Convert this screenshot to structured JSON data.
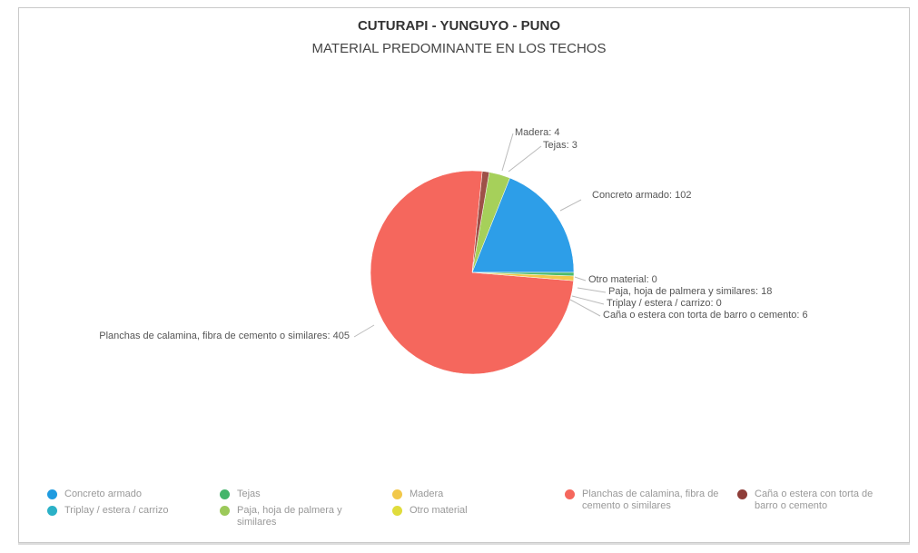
{
  "chart_data": {
    "type": "pie",
    "title": "CUTURAPI - YUNGUYO - PUNO",
    "subtitle": "MATERIAL PREDOMINANTE EN LOS TECHOS",
    "legend_position": "bottom",
    "slices": [
      {
        "label": "Concreto armado",
        "value": 102,
        "color": "#2d9ee8",
        "data_label": "Concreto armado: 102"
      },
      {
        "label": "Otro material",
        "value": 0,
        "color": "#e6e04a",
        "data_label": "Otro material: 0"
      },
      {
        "label": "Paja, hoja de palmera y similares",
        "value": 18,
        "color": "#a6d05a",
        "data_label": "Paja, hoja de palmera y similares: 18"
      },
      {
        "label": "Triplay / estera / carrizo",
        "value": 0,
        "color": "#36b6c9",
        "data_label": "Triplay / estera / carrizo: 0"
      },
      {
        "label": "Caña o estera con torta de barro o cemento",
        "value": 6,
        "color": "#9e5048",
        "data_label": "Caña o estera con torta de barro o cemento: 6"
      },
      {
        "label": "Planchas de calamina, fibra de cemento o similares",
        "value": 405,
        "color": "#f5675d",
        "data_label": "Planchas de calamina, fibra de cemento o similares: 405"
      },
      {
        "label": "Madera",
        "value": 4,
        "color": "#f2c84a",
        "data_label": "Madera: 4"
      },
      {
        "label": "Tejas",
        "value": 3,
        "color": "#4dbb6a",
        "data_label": "Tejas: 3"
      }
    ],
    "legend": [
      {
        "label": "Concreto armado",
        "color": "#1f9be0"
      },
      {
        "label": "Triplay / estera / carrizo",
        "color": "#2bb1c7"
      },
      {
        "label": "Tejas",
        "color": "#43b56a"
      },
      {
        "label": "Paja, hoja de palmera y similares",
        "color": "#9cc95a"
      },
      {
        "label": "Madera",
        "color": "#f2c84a"
      },
      {
        "label": "Otro material",
        "color": "#e0dc3c"
      },
      {
        "label": "Planchas de calamina, fibra de cemento o similares",
        "color": "#f5675d"
      },
      {
        "label": "Caña o estera con torta de barro o cemento",
        "color": "#8e3d38"
      }
    ]
  }
}
